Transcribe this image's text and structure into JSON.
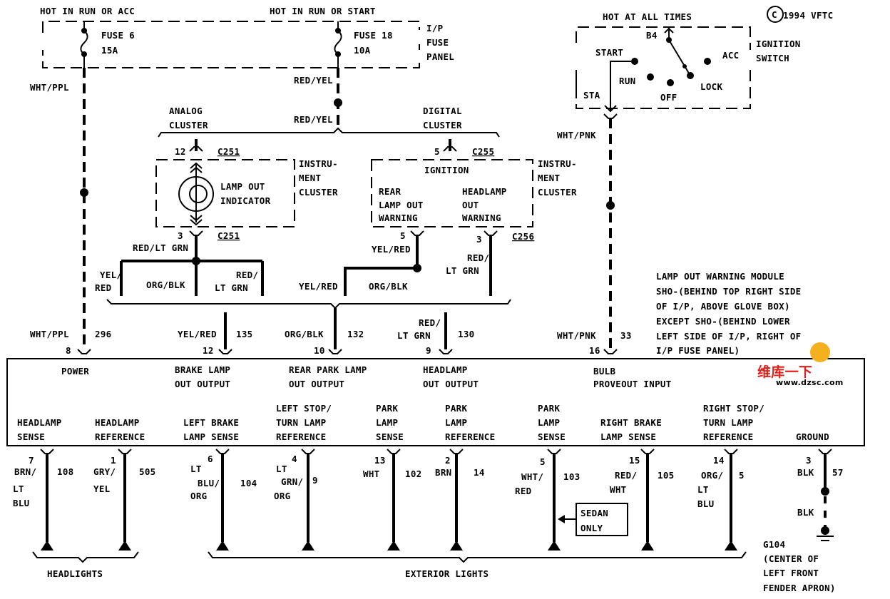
{
  "power_sources": {
    "run_acc": "HOT IN RUN OR ACC",
    "run_start": "HOT IN RUN OR START",
    "all_times": "HOT AT ALL TIMES"
  },
  "copyright": {
    "symbol": "C",
    "text": "1994 VFTC"
  },
  "fuse_panel": {
    "label": [
      "I/P",
      "FUSE",
      "PANEL"
    ],
    "fuse6": [
      "FUSE 6",
      "15A"
    ],
    "fuse18": [
      "FUSE 18",
      "10A"
    ]
  },
  "ignition_switch": {
    "label": [
      "IGNITION",
      "SWITCH"
    ],
    "b4": "B4",
    "start": "START",
    "run": "RUN",
    "off": "OFF",
    "lock": "LOCK",
    "acc": "ACC",
    "sta": "STA"
  },
  "wires": {
    "wht_ppl": "WHT/PPL",
    "red_yel": "RED/YEL",
    "wht_pnk": "WHT/PNK",
    "red_lt_grn": "RED/LT GRN",
    "yel_red": "YEL/RED",
    "org_blk": "ORG/BLK",
    "yel": "YEL/",
    "red": "RED",
    "red_slash": "RED/",
    "lt_grn": "LT GRN",
    "blk": "BLK"
  },
  "analog_cluster": {
    "label": [
      "ANALOG",
      "CLUSTER"
    ],
    "pin_in": "12",
    "pin_out": "3",
    "connector": "C251",
    "indicator": [
      "LAMP OUT",
      "INDICATOR"
    ],
    "cluster": [
      "INSTRU-",
      "MENT",
      "CLUSTER"
    ]
  },
  "digital_cluster": {
    "label": [
      "DIGITAL",
      "CLUSTER"
    ],
    "pin_in": "5",
    "connector_in": "C255",
    "ignition": "IGNITION",
    "rear": [
      "REAR",
      "LAMP OUT",
      "WARNING"
    ],
    "headlamp": [
      "HEADLAMP",
      "OUT",
      "WARNING"
    ],
    "cluster": [
      "INSTRU-",
      "MENT",
      "CLUSTER"
    ],
    "pin_rear": "5",
    "pin_head": "3",
    "connector_out": "C256"
  },
  "module_inputs": {
    "power": {
      "label": [
        "POWER"
      ],
      "pin": "8",
      "circuit": "296",
      "color": "WHT/PPL"
    },
    "brake": {
      "label": [
        "BRAKE LAMP",
        "OUT OUTPUT"
      ],
      "pin": "12",
      "circuit": "135",
      "color": "YEL/RED"
    },
    "rear_park": {
      "label": [
        "REAR PARK LAMP",
        "OUT OUTPUT"
      ],
      "pin": "10",
      "circuit": "132",
      "color": "ORG/BLK"
    },
    "headlamp": {
      "label": [
        "HEADLAMP",
        "OUT OUTPUT"
      ],
      "pin": "9",
      "circuit": "130",
      "color": [
        "RED/",
        "LT GRN"
      ]
    },
    "bulb": {
      "label": [
        "BULB",
        "PROVEOUT INPUT"
      ],
      "pin": "16",
      "circuit": "33",
      "color": "WHT/PNK"
    }
  },
  "module_location": [
    "LAMP OUT WARNING MODULE",
    "SHO-(BEHIND TOP RIGHT SIDE",
    "OF I/P, ABOVE GLOVE BOX)",
    "EXCEPT SHO-(BEHIND LOWER",
    "LEFT SIDE OF I/P, RIGHT OF",
    "I/P FUSE PANEL)"
  ],
  "module_outputs": [
    {
      "label": [
        "HEADLAMP",
        "SENSE"
      ],
      "pin": "7",
      "color": [
        "BRN/",
        "LT",
        "BLU"
      ],
      "circuit": "108"
    },
    {
      "label": [
        "HEADLAMP",
        "REFERENCE"
      ],
      "pin": "1",
      "color": [
        "GRY/",
        "YEL"
      ],
      "circuit": "505"
    },
    {
      "label": [
        "LEFT BRAKE",
        "LAMP SENSE"
      ],
      "pin": "6",
      "color": [
        "LT",
        "BLU/",
        "ORG"
      ],
      "circuit": "104"
    },
    {
      "label": [
        "LEFT STOP/",
        "TURN LAMP",
        "REFERENCE"
      ],
      "pin": "4",
      "color": [
        "LT",
        "GRN/",
        "ORG"
      ],
      "circuit": "9"
    },
    {
      "label": [
        "PARK",
        "LAMP",
        "SENSE"
      ],
      "pin": "13",
      "color": [
        "WHT"
      ],
      "circuit": "102"
    },
    {
      "label": [
        "PARK",
        "LAMP",
        "REFERENCE"
      ],
      "pin": "2",
      "color": [
        "BRN"
      ],
      "circuit": "14"
    },
    {
      "label": [
        "PARK",
        "LAMP",
        "SENSE"
      ],
      "pin": "5",
      "color": [
        "WHT/",
        "RED"
      ],
      "circuit": "103"
    },
    {
      "label": [
        "RIGHT BRAKE",
        "LAMP SENSE"
      ],
      "pin": "15",
      "color": [
        "RED/",
        "WHT"
      ],
      "circuit": "105"
    },
    {
      "label": [
        "RIGHT STOP/",
        "TURN LAMP",
        "REFERENCE"
      ],
      "pin": "14",
      "color": [
        "ORG/",
        "LT",
        "BLU"
      ],
      "circuit": "5"
    },
    {
      "label": [
        "GROUND"
      ],
      "pin": "3",
      "color": [
        "BLK"
      ],
      "circuit": "57"
    }
  ],
  "sedan_only": [
    "SEDAN",
    "ONLY"
  ],
  "groups": {
    "headlights": "HEADLIGHTS",
    "exterior": "EXTERIOR LIGHTS"
  },
  "ground": [
    "G104",
    "(CENTER OF",
    "LEFT FRONT",
    "FENDER APRON)"
  ],
  "watermark": {
    "brand": "维库一下",
    "url": "www.dzsc.com"
  }
}
